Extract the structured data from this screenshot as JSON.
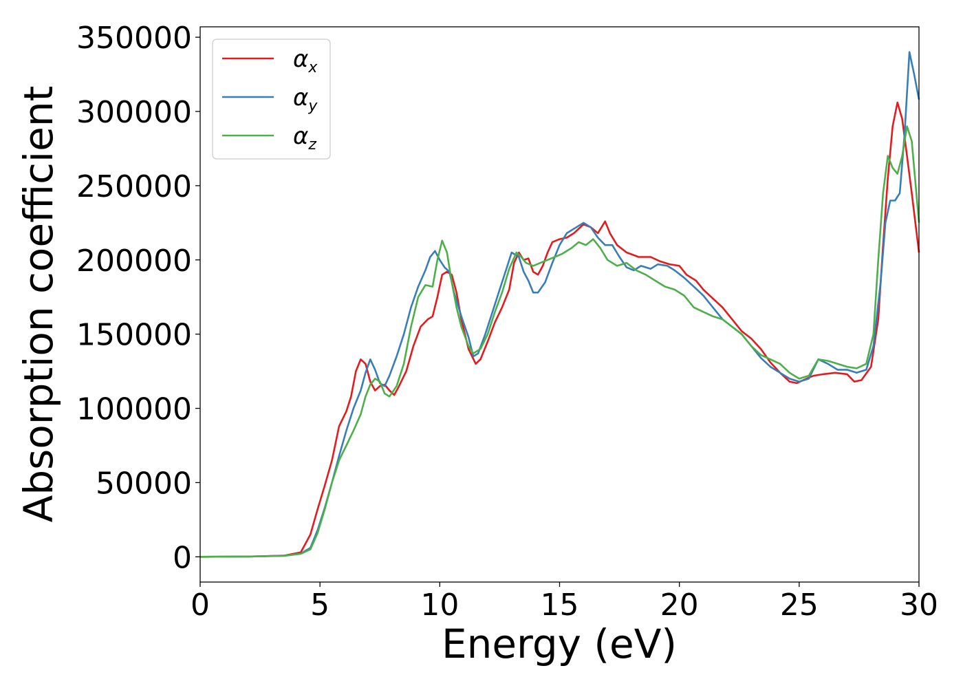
{
  "chart_data": {
    "type": "line",
    "xlabel": "Energy (eV)",
    "ylabel": "Absorption coefficient",
    "xlim": [
      0,
      30
    ],
    "ylim": [
      -17000,
      357000
    ],
    "x_ticks": [
      0,
      5,
      10,
      15,
      20,
      25,
      30
    ],
    "y_ticks": [
      0,
      50000,
      100000,
      150000,
      200000,
      250000,
      300000,
      350000
    ],
    "legend": {
      "position": "top-left"
    },
    "series": [
      {
        "name": "αx",
        "symbol": "α",
        "sub": "x",
        "color": "#e41a1c",
        "points": [
          [
            0,
            0
          ],
          [
            2,
            200
          ],
          [
            3.5,
            800
          ],
          [
            4.2,
            3000
          ],
          [
            4.6,
            15000
          ],
          [
            4.9,
            32000
          ],
          [
            5.2,
            48000
          ],
          [
            5.5,
            65000
          ],
          [
            5.8,
            88000
          ],
          [
            6.1,
            98000
          ],
          [
            6.3,
            108000
          ],
          [
            6.5,
            125000
          ],
          [
            6.7,
            133000
          ],
          [
            6.9,
            130000
          ],
          [
            7.1,
            118000
          ],
          [
            7.3,
            112000
          ],
          [
            7.5,
            115000
          ],
          [
            7.7,
            116000
          ],
          [
            7.9,
            112000
          ],
          [
            8.1,
            109000
          ],
          [
            8.3,
            115000
          ],
          [
            8.6,
            125000
          ],
          [
            8.9,
            142000
          ],
          [
            9.2,
            155000
          ],
          [
            9.5,
            160000
          ],
          [
            9.7,
            162000
          ],
          [
            9.9,
            175000
          ],
          [
            10.1,
            190000
          ],
          [
            10.3,
            192000
          ],
          [
            10.5,
            190000
          ],
          [
            10.7,
            178000
          ],
          [
            10.9,
            160000
          ],
          [
            11.2,
            140000
          ],
          [
            11.5,
            130000
          ],
          [
            11.7,
            133000
          ],
          [
            12.0,
            145000
          ],
          [
            12.3,
            158000
          ],
          [
            12.6,
            168000
          ],
          [
            12.9,
            180000
          ],
          [
            13.1,
            198000
          ],
          [
            13.3,
            205000
          ],
          [
            13.5,
            200000
          ],
          [
            13.7,
            201000
          ],
          [
            13.9,
            192000
          ],
          [
            14.1,
            190000
          ],
          [
            14.3,
            196000
          ],
          [
            14.5,
            205000
          ],
          [
            14.7,
            212000
          ],
          [
            15.0,
            214000
          ],
          [
            15.3,
            215000
          ],
          [
            15.6,
            218000
          ],
          [
            16.0,
            224000
          ],
          [
            16.3,
            222000
          ],
          [
            16.6,
            218000
          ],
          [
            16.9,
            226000
          ],
          [
            17.1,
            218000
          ],
          [
            17.4,
            210000
          ],
          [
            17.8,
            205000
          ],
          [
            18.3,
            202000
          ],
          [
            18.8,
            202000
          ],
          [
            19.2,
            199000
          ],
          [
            19.6,
            197000
          ],
          [
            20.0,
            196000
          ],
          [
            20.3,
            190000
          ],
          [
            20.7,
            186000
          ],
          [
            21.0,
            180000
          ],
          [
            21.4,
            174000
          ],
          [
            21.8,
            168000
          ],
          [
            22.2,
            160000
          ],
          [
            22.6,
            152000
          ],
          [
            23.0,
            147000
          ],
          [
            23.4,
            140000
          ],
          [
            23.8,
            131000
          ],
          [
            24.2,
            124000
          ],
          [
            24.6,
            118000
          ],
          [
            24.9,
            117000
          ],
          [
            25.3,
            120000
          ],
          [
            25.6,
            122000
          ],
          [
            26.0,
            123000
          ],
          [
            26.5,
            124000
          ],
          [
            27.0,
            123000
          ],
          [
            27.3,
            118000
          ],
          [
            27.6,
            119000
          ],
          [
            28.0,
            128000
          ],
          [
            28.3,
            160000
          ],
          [
            28.5,
            210000
          ],
          [
            28.7,
            255000
          ],
          [
            28.9,
            290000
          ],
          [
            29.1,
            306000
          ],
          [
            29.3,
            295000
          ],
          [
            29.5,
            270000
          ],
          [
            29.7,
            245000
          ],
          [
            30.0,
            205000
          ]
        ]
      },
      {
        "name": "αy",
        "symbol": "α",
        "sub": "y",
        "color": "#377eb8",
        "points": [
          [
            0,
            0
          ],
          [
            2,
            200
          ],
          [
            3.5,
            700
          ],
          [
            4.2,
            2200
          ],
          [
            4.6,
            6000
          ],
          [
            4.9,
            18000
          ],
          [
            5.2,
            33000
          ],
          [
            5.5,
            50000
          ],
          [
            5.8,
            68000
          ],
          [
            6.1,
            85000
          ],
          [
            6.4,
            100000
          ],
          [
            6.7,
            112000
          ],
          [
            6.9,
            124000
          ],
          [
            7.1,
            133000
          ],
          [
            7.3,
            126000
          ],
          [
            7.5,
            117000
          ],
          [
            7.7,
            115000
          ],
          [
            7.9,
            122000
          ],
          [
            8.2,
            135000
          ],
          [
            8.5,
            150000
          ],
          [
            8.8,
            168000
          ],
          [
            9.1,
            182000
          ],
          [
            9.4,
            193000
          ],
          [
            9.6,
            202000
          ],
          [
            9.8,
            206000
          ],
          [
            10.0,
            200000
          ],
          [
            10.2,
            195000
          ],
          [
            10.4,
            192000
          ],
          [
            10.6,
            178000
          ],
          [
            10.9,
            162000
          ],
          [
            11.2,
            148000
          ],
          [
            11.4,
            135000
          ],
          [
            11.6,
            137000
          ],
          [
            11.9,
            150000
          ],
          [
            12.2,
            165000
          ],
          [
            12.5,
            180000
          ],
          [
            12.8,
            195000
          ],
          [
            13.0,
            205000
          ],
          [
            13.3,
            202000
          ],
          [
            13.5,
            192000
          ],
          [
            13.7,
            186000
          ],
          [
            13.9,
            178000
          ],
          [
            14.1,
            178000
          ],
          [
            14.4,
            185000
          ],
          [
            14.7,
            198000
          ],
          [
            15.0,
            210000
          ],
          [
            15.3,
            218000
          ],
          [
            15.7,
            222000
          ],
          [
            16.0,
            225000
          ],
          [
            16.3,
            222000
          ],
          [
            16.6,
            215000
          ],
          [
            16.9,
            210000
          ],
          [
            17.2,
            210000
          ],
          [
            17.5,
            202000
          ],
          [
            17.8,
            195000
          ],
          [
            18.1,
            193000
          ],
          [
            18.4,
            196000
          ],
          [
            18.8,
            194000
          ],
          [
            19.1,
            197000
          ],
          [
            19.5,
            196000
          ],
          [
            19.8,
            193000
          ],
          [
            20.2,
            188000
          ],
          [
            20.6,
            182000
          ],
          [
            21.0,
            176000
          ],
          [
            21.4,
            168000
          ],
          [
            21.8,
            160000
          ],
          [
            22.2,
            155000
          ],
          [
            22.6,
            150000
          ],
          [
            23.0,
            142000
          ],
          [
            23.4,
            134000
          ],
          [
            23.8,
            128000
          ],
          [
            24.2,
            124000
          ],
          [
            24.6,
            120000
          ],
          [
            25.0,
            118000
          ],
          [
            25.4,
            120000
          ],
          [
            25.8,
            133000
          ],
          [
            26.2,
            130000
          ],
          [
            26.6,
            126000
          ],
          [
            27.0,
            126000
          ],
          [
            27.4,
            124000
          ],
          [
            27.8,
            126000
          ],
          [
            28.1,
            142000
          ],
          [
            28.4,
            185000
          ],
          [
            28.6,
            225000
          ],
          [
            28.8,
            240000
          ],
          [
            29.0,
            240000
          ],
          [
            29.2,
            245000
          ],
          [
            29.4,
            285000
          ],
          [
            29.6,
            340000
          ],
          [
            29.8,
            325000
          ],
          [
            30.0,
            308000
          ]
        ]
      },
      {
        "name": "αz",
        "symbol": "α",
        "sub": "z",
        "color": "#4daf4a",
        "points": [
          [
            0,
            0
          ],
          [
            2,
            200
          ],
          [
            3.5,
            600
          ],
          [
            4.2,
            2000
          ],
          [
            4.6,
            5000
          ],
          [
            4.9,
            16000
          ],
          [
            5.2,
            32000
          ],
          [
            5.5,
            50000
          ],
          [
            5.8,
            65000
          ],
          [
            6.1,
            75000
          ],
          [
            6.4,
            85000
          ],
          [
            6.7,
            96000
          ],
          [
            6.9,
            108000
          ],
          [
            7.1,
            116000
          ],
          [
            7.3,
            120000
          ],
          [
            7.5,
            118000
          ],
          [
            7.7,
            110000
          ],
          [
            7.9,
            108000
          ],
          [
            8.2,
            115000
          ],
          [
            8.5,
            130000
          ],
          [
            8.8,
            155000
          ],
          [
            9.1,
            175000
          ],
          [
            9.4,
            183000
          ],
          [
            9.7,
            182000
          ],
          [
            9.9,
            200000
          ],
          [
            10.1,
            213000
          ],
          [
            10.3,
            205000
          ],
          [
            10.5,
            185000
          ],
          [
            10.7,
            168000
          ],
          [
            10.9,
            155000
          ],
          [
            11.2,
            142000
          ],
          [
            11.4,
            137000
          ],
          [
            11.7,
            140000
          ],
          [
            12.0,
            150000
          ],
          [
            12.3,
            165000
          ],
          [
            12.6,
            178000
          ],
          [
            12.9,
            194000
          ],
          [
            13.2,
            205000
          ],
          [
            13.4,
            202000
          ],
          [
            13.6,
            198000
          ],
          [
            13.9,
            196000
          ],
          [
            14.2,
            198000
          ],
          [
            14.5,
            200000
          ],
          [
            14.8,
            202000
          ],
          [
            15.1,
            204000
          ],
          [
            15.5,
            208000
          ],
          [
            15.8,
            212000
          ],
          [
            16.1,
            210000
          ],
          [
            16.4,
            214000
          ],
          [
            16.7,
            208000
          ],
          [
            17.0,
            200000
          ],
          [
            17.4,
            196000
          ],
          [
            17.8,
            198000
          ],
          [
            18.2,
            193000
          ],
          [
            18.6,
            190000
          ],
          [
            19.0,
            186000
          ],
          [
            19.4,
            182000
          ],
          [
            19.8,
            180000
          ],
          [
            20.2,
            176000
          ],
          [
            20.6,
            168000
          ],
          [
            21.0,
            165000
          ],
          [
            21.4,
            162000
          ],
          [
            21.8,
            160000
          ],
          [
            22.2,
            155000
          ],
          [
            22.6,
            150000
          ],
          [
            23.0,
            142000
          ],
          [
            23.4,
            136000
          ],
          [
            23.8,
            133000
          ],
          [
            24.2,
            130000
          ],
          [
            24.6,
            124000
          ],
          [
            25.0,
            120000
          ],
          [
            25.4,
            122000
          ],
          [
            25.8,
            133000
          ],
          [
            26.2,
            132000
          ],
          [
            26.6,
            130000
          ],
          [
            27.0,
            128000
          ],
          [
            27.4,
            127000
          ],
          [
            27.8,
            130000
          ],
          [
            28.1,
            150000
          ],
          [
            28.3,
            200000
          ],
          [
            28.5,
            245000
          ],
          [
            28.7,
            270000
          ],
          [
            28.9,
            262000
          ],
          [
            29.1,
            258000
          ],
          [
            29.3,
            270000
          ],
          [
            29.5,
            290000
          ],
          [
            29.7,
            280000
          ],
          [
            30.0,
            225000
          ]
        ]
      }
    ]
  }
}
